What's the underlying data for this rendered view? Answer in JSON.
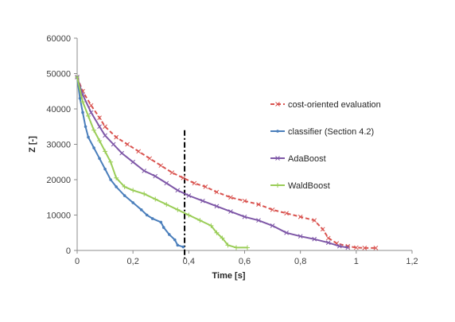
{
  "chart_data": {
    "type": "line",
    "title": "",
    "xlabel": "Time [s]",
    "ylabel": "Z [-]",
    "xlim": [
      0,
      1.2
    ],
    "ylim": [
      0,
      60000
    ],
    "x_ticks": [
      0,
      0.2,
      0.4,
      0.6,
      0.8,
      1,
      1.2
    ],
    "x_tick_labels": [
      "0",
      "0,2",
      "0,4",
      "0,6",
      "0,8",
      "1",
      "1,2"
    ],
    "y_ticks": [
      0,
      10000,
      20000,
      30000,
      40000,
      50000,
      60000
    ],
    "y_tick_labels": [
      "0",
      "10000",
      "20000",
      "30000",
      "40000",
      "50000",
      "60000"
    ],
    "grid": "none",
    "legend_position": "right",
    "vertical_marker": {
      "x": 0.385,
      "y_top": 34000,
      "style": "dash-dot",
      "color": "#000000"
    },
    "series": [
      {
        "name": "cost-oriented evaluation",
        "color": "#d9534f",
        "line": "dashed",
        "marker": "x",
        "points": [
          [
            0,
            49000
          ],
          [
            0.02,
            45000
          ],
          [
            0.05,
            41000
          ],
          [
            0.08,
            37500
          ],
          [
            0.1,
            35000
          ],
          [
            0.14,
            32000
          ],
          [
            0.18,
            30000
          ],
          [
            0.22,
            28000
          ],
          [
            0.26,
            26000
          ],
          [
            0.3,
            24000
          ],
          [
            0.34,
            22000
          ],
          [
            0.38,
            20500
          ],
          [
            0.42,
            19000
          ],
          [
            0.46,
            18000
          ],
          [
            0.5,
            16500
          ],
          [
            0.55,
            15000
          ],
          [
            0.6,
            14000
          ],
          [
            0.65,
            13000
          ],
          [
            0.7,
            11500
          ],
          [
            0.75,
            10500
          ],
          [
            0.8,
            9500
          ],
          [
            0.85,
            8500
          ],
          [
            0.88,
            6000
          ],
          [
            0.9,
            3500
          ],
          [
            0.93,
            2000
          ],
          [
            0.97,
            1200
          ],
          [
            1.0,
            800
          ],
          [
            1.03,
            700
          ],
          [
            1.07,
            700
          ]
        ]
      },
      {
        "name": "classifier (Section 4.2)",
        "color": "#4a7ebb",
        "line": "solid",
        "marker": "dot",
        "points": [
          [
            0,
            49000
          ],
          [
            0.01,
            43000
          ],
          [
            0.02,
            39000
          ],
          [
            0.03,
            35000
          ],
          [
            0.04,
            32000
          ],
          [
            0.06,
            29000
          ],
          [
            0.08,
            26000
          ],
          [
            0.1,
            23000
          ],
          [
            0.12,
            20000
          ],
          [
            0.14,
            18000
          ],
          [
            0.17,
            15500
          ],
          [
            0.2,
            13500
          ],
          [
            0.23,
            11500
          ],
          [
            0.25,
            10000
          ],
          [
            0.27,
            9000
          ],
          [
            0.3,
            8000
          ],
          [
            0.31,
            6500
          ],
          [
            0.33,
            4500
          ],
          [
            0.35,
            3000
          ],
          [
            0.36,
            1500
          ],
          [
            0.38,
            1000
          ]
        ]
      },
      {
        "name": "AdaBoost",
        "color": "#7e57a7",
        "line": "solid",
        "marker": "x",
        "points": [
          [
            0,
            49000
          ],
          [
            0.02,
            44000
          ],
          [
            0.05,
            39000
          ],
          [
            0.08,
            35000
          ],
          [
            0.1,
            32500
          ],
          [
            0.13,
            30000
          ],
          [
            0.16,
            27500
          ],
          [
            0.2,
            25000
          ],
          [
            0.24,
            22500
          ],
          [
            0.28,
            21000
          ],
          [
            0.32,
            19000
          ],
          [
            0.36,
            17000
          ],
          [
            0.4,
            15500
          ],
          [
            0.45,
            14000
          ],
          [
            0.5,
            12500
          ],
          [
            0.55,
            11000
          ],
          [
            0.6,
            9500
          ],
          [
            0.65,
            8500
          ],
          [
            0.7,
            7000
          ],
          [
            0.75,
            5000
          ],
          [
            0.8,
            4000
          ],
          [
            0.85,
            3200
          ],
          [
            0.9,
            2200
          ],
          [
            0.94,
            1200
          ],
          [
            0.97,
            800
          ]
        ]
      },
      {
        "name": "WaldBoost",
        "color": "#9acd57",
        "line": "solid",
        "marker": "plus",
        "points": [
          [
            0,
            49000
          ],
          [
            0.02,
            42000
          ],
          [
            0.04,
            38000
          ],
          [
            0.06,
            34000
          ],
          [
            0.08,
            31000
          ],
          [
            0.1,
            28000
          ],
          [
            0.12,
            25000
          ],
          [
            0.14,
            20500
          ],
          [
            0.17,
            18000
          ],
          [
            0.2,
            17000
          ],
          [
            0.24,
            16000
          ],
          [
            0.28,
            14500
          ],
          [
            0.32,
            13000
          ],
          [
            0.36,
            11500
          ],
          [
            0.4,
            10000
          ],
          [
            0.44,
            8500
          ],
          [
            0.48,
            7000
          ],
          [
            0.5,
            5000
          ],
          [
            0.52,
            3500
          ],
          [
            0.54,
            1500
          ],
          [
            0.57,
            800
          ],
          [
            0.61,
            800
          ]
        ]
      }
    ]
  }
}
